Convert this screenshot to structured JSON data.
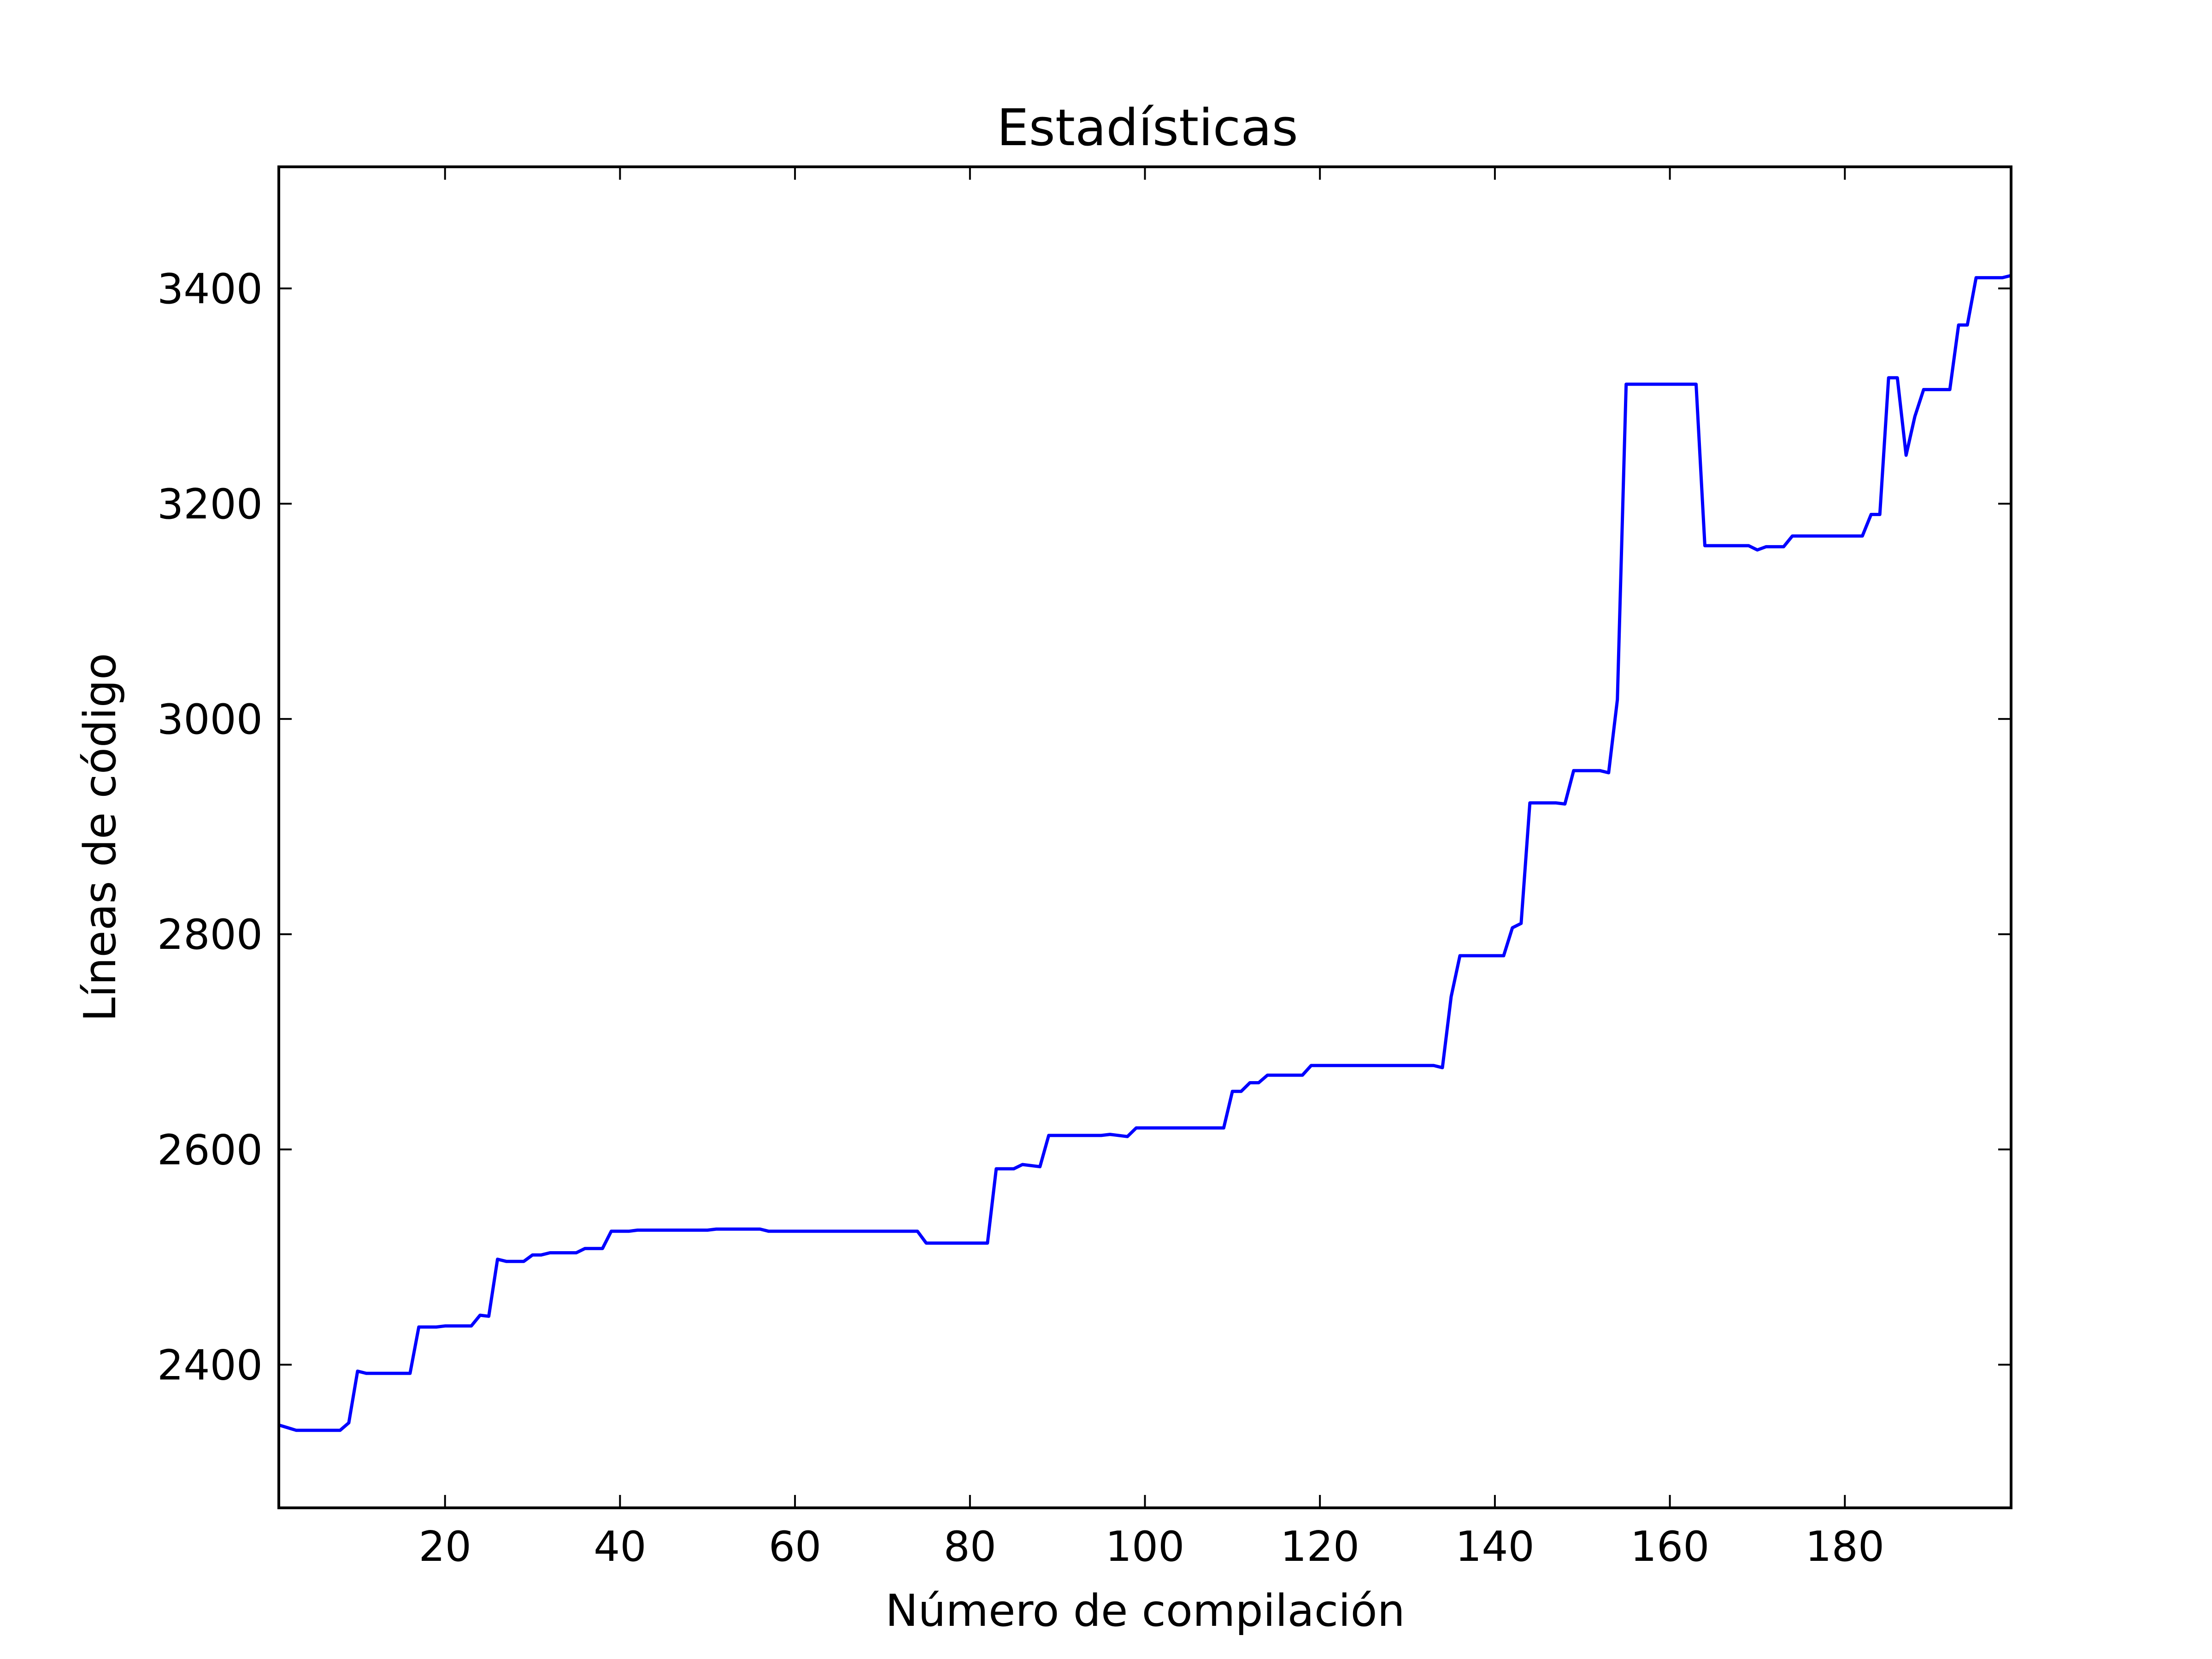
{
  "chart_data": {
    "type": "line",
    "title": "Estadísticas",
    "xlabel": "Número de compilación",
    "ylabel": "Líneas de código",
    "xlim": [
      1,
      199
    ],
    "ylim": [
      2267,
      3513
    ],
    "x_ticks": [
      20,
      40,
      60,
      80,
      100,
      120,
      140,
      160,
      180
    ],
    "y_ticks": [
      2400,
      2600,
      2800,
      3000,
      3200,
      3400
    ],
    "grid": false,
    "line_color": "#0000ff",
    "series": [
      {
        "points": [
          [
            1,
            2344
          ],
          [
            3,
            2339
          ],
          [
            8,
            2339
          ],
          [
            9,
            2346
          ],
          [
            10,
            2394
          ],
          [
            11,
            2392
          ],
          [
            16,
            2392
          ],
          [
            17,
            2435
          ],
          [
            19,
            2435
          ],
          [
            20,
            2436
          ],
          [
            23,
            2436
          ],
          [
            24,
            2446
          ],
          [
            25,
            2445
          ],
          [
            26,
            2498
          ],
          [
            27,
            2496
          ],
          [
            29,
            2496
          ],
          [
            30,
            2502
          ],
          [
            31,
            2502
          ],
          [
            32,
            2504
          ],
          [
            35,
            2504
          ],
          [
            36,
            2508
          ],
          [
            38,
            2508
          ],
          [
            39,
            2524
          ],
          [
            41,
            2524
          ],
          [
            42,
            2525
          ],
          [
            50,
            2525
          ],
          [
            51,
            2526
          ],
          [
            56,
            2526
          ],
          [
            57,
            2524
          ],
          [
            74,
            2524
          ],
          [
            75,
            2513
          ],
          [
            82,
            2513
          ],
          [
            83,
            2582
          ],
          [
            85,
            2582
          ],
          [
            86,
            2586
          ],
          [
            88,
            2584
          ],
          [
            89,
            2613
          ],
          [
            95,
            2613
          ],
          [
            96,
            2614
          ],
          [
            98,
            2612
          ],
          [
            99,
            2620
          ],
          [
            109,
            2620
          ],
          [
            110,
            2654
          ],
          [
            111,
            2654
          ],
          [
            112,
            2662
          ],
          [
            113,
            2662
          ],
          [
            114,
            2669
          ],
          [
            118,
            2669
          ],
          [
            119,
            2678
          ],
          [
            133,
            2678
          ],
          [
            134,
            2676
          ],
          [
            135,
            2742
          ],
          [
            136,
            2780
          ],
          [
            141,
            2780
          ],
          [
            142,
            2806
          ],
          [
            143,
            2810
          ],
          [
            144,
            2922
          ],
          [
            147,
            2922
          ],
          [
            148,
            2921
          ],
          [
            149,
            2952
          ],
          [
            152,
            2952
          ],
          [
            153,
            2950
          ],
          [
            154,
            3018
          ],
          [
            155,
            3311
          ],
          [
            163,
            3311
          ],
          [
            164,
            3161
          ],
          [
            169,
            3161
          ],
          [
            170,
            3157
          ],
          [
            171,
            3160
          ],
          [
            173,
            3160
          ],
          [
            174,
            3170
          ],
          [
            182,
            3170
          ],
          [
            183,
            3190
          ],
          [
            184,
            3190
          ],
          [
            185,
            3317
          ],
          [
            186,
            3317
          ],
          [
            187,
            3245
          ],
          [
            188,
            3281
          ],
          [
            189,
            3306
          ],
          [
            192,
            3306
          ],
          [
            193,
            3366
          ],
          [
            194,
            3366
          ],
          [
            195,
            3410
          ],
          [
            198,
            3410
          ],
          [
            199,
            3412
          ],
          [
            200,
            3408
          ],
          [
            201,
            3411
          ],
          [
            202,
            3412
          ]
        ]
      }
    ]
  }
}
